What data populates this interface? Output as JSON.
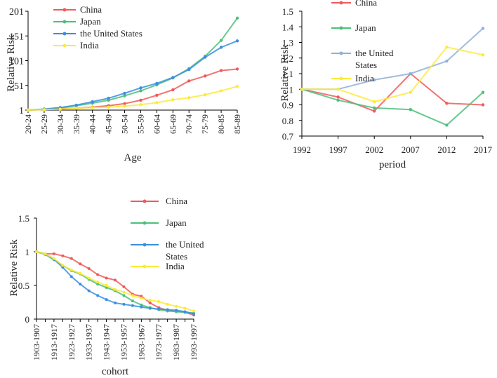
{
  "chart_data": [
    {
      "type": "line",
      "title": "",
      "xlabel": "Age",
      "ylabel": "Relative Risk",
      "categories": [
        "20-24",
        "25-29",
        "30-34",
        "35-39",
        "40-44",
        "45-49",
        "50-54",
        "55-59",
        "60-64",
        "65-69",
        "70-74",
        "75-79",
        "80-85",
        "85-89"
      ],
      "y_ticks": [
        "1",
        "51",
        "101",
        "151",
        "201"
      ],
      "ylim": [
        1,
        201
      ],
      "legend_position": "top-left",
      "series": [
        {
          "name": "China",
          "color": "#f05a5a",
          "values": [
            1,
            2,
            4,
            5,
            7,
            10,
            14,
            21,
            31,
            42,
            60,
            70,
            81,
            84
          ]
        },
        {
          "name": "Japan",
          "color": "#4cc07a",
          "values": [
            1,
            3,
            6,
            10,
            15,
            21,
            30,
            40,
            52,
            66,
            85,
            110,
            142,
            187
          ]
        },
        {
          "name": "the United States",
          "color": "#3a8fe0",
          "values": [
            1,
            3,
            6,
            11,
            18,
            25,
            35,
            46,
            55,
            67,
            83,
            108,
            128,
            141
          ]
        },
        {
          "name": "India",
          "color": "#fbeb3b",
          "values": [
            1,
            2,
            3,
            5,
            6,
            7,
            9,
            12,
            16,
            22,
            26,
            32,
            40,
            49
          ]
        }
      ]
    },
    {
      "type": "line",
      "title": "",
      "xlabel": "period",
      "ylabel": "Relative Risk",
      "categories": [
        "1992",
        "1997",
        "2002",
        "2007",
        "2012",
        "2017"
      ],
      "y_ticks": [
        "0.7",
        "0.8",
        "0.9",
        "1",
        "1.1",
        "1.2",
        "1.3",
        "1.4",
        "1.5"
      ],
      "ylim": [
        0.7,
        1.5
      ],
      "legend_position": "top",
      "series": [
        {
          "name": "China",
          "color": "#f05a5a",
          "values": [
            1.0,
            0.95,
            0.86,
            1.1,
            0.91,
            0.9
          ]
        },
        {
          "name": "Japan",
          "color": "#4cc07a",
          "values": [
            1.0,
            0.93,
            0.88,
            0.87,
            0.77,
            0.98
          ]
        },
        {
          "name": "the United States",
          "color": "#8fb0d8",
          "values": [
            1.0,
            1.0,
            1.06,
            1.1,
            1.18,
            1.39
          ]
        },
        {
          "name": "India",
          "color": "#fbeb3b",
          "values": [
            1.0,
            1.0,
            0.92,
            0.98,
            1.27,
            1.22
          ]
        }
      ]
    },
    {
      "type": "line",
      "title": "",
      "xlabel": "cohort",
      "ylabel": "Relative Risk",
      "categories": [
        "1903-1907",
        "1908-1912",
        "1913-1917",
        "1918-1922",
        "1923-1927",
        "1928-1932",
        "1933-1937",
        "1938-1942",
        "1943-1947",
        "1948-1952",
        "1953-1957",
        "1958-1962",
        "1963-1967",
        "1968-1972",
        "1973-1977",
        "1978-1982",
        "1983-1987",
        "1988-1992",
        "1993-1997"
      ],
      "category_tick_labels": [
        "1903-1907",
        "1913-1917",
        "1923-1927",
        "1933-1937",
        "1943-1947",
        "1953-1957",
        "1963-1967",
        "1973-1977",
        "1983-1987",
        "1993-1997"
      ],
      "y_ticks": [
        "0",
        "0.5",
        "1",
        "1.5"
      ],
      "ylim": [
        0,
        1.5
      ],
      "legend_position": "top-right",
      "series": [
        {
          "name": "China",
          "color": "#f05a5a",
          "values": [
            1.0,
            0.97,
            0.97,
            0.94,
            0.9,
            0.82,
            0.75,
            0.66,
            0.61,
            0.58,
            0.48,
            0.37,
            0.34,
            0.24,
            0.17,
            0.13,
            0.12,
            0.1,
            0.06
          ]
        },
        {
          "name": "Japan",
          "color": "#4cc07a",
          "values": [
            1.0,
            0.96,
            0.88,
            0.8,
            0.72,
            0.67,
            0.59,
            0.52,
            0.47,
            0.42,
            0.35,
            0.27,
            0.21,
            0.17,
            0.14,
            0.12,
            0.11,
            0.1,
            0.09
          ]
        },
        {
          "name": "the United States",
          "color": "#3a8fe0",
          "values": [
            1.0,
            0.97,
            0.89,
            0.77,
            0.63,
            0.52,
            0.42,
            0.35,
            0.29,
            0.24,
            0.22,
            0.2,
            0.18,
            0.16,
            0.15,
            0.14,
            0.13,
            0.11,
            0.08
          ]
        },
        {
          "name": "India",
          "color": "#fbeb3b",
          "values": [
            1.0,
            0.97,
            0.9,
            0.8,
            0.73,
            0.68,
            0.61,
            0.55,
            0.5,
            0.44,
            0.4,
            0.35,
            0.31,
            0.28,
            0.26,
            0.22,
            0.19,
            0.16,
            0.12
          ]
        }
      ]
    }
  ]
}
